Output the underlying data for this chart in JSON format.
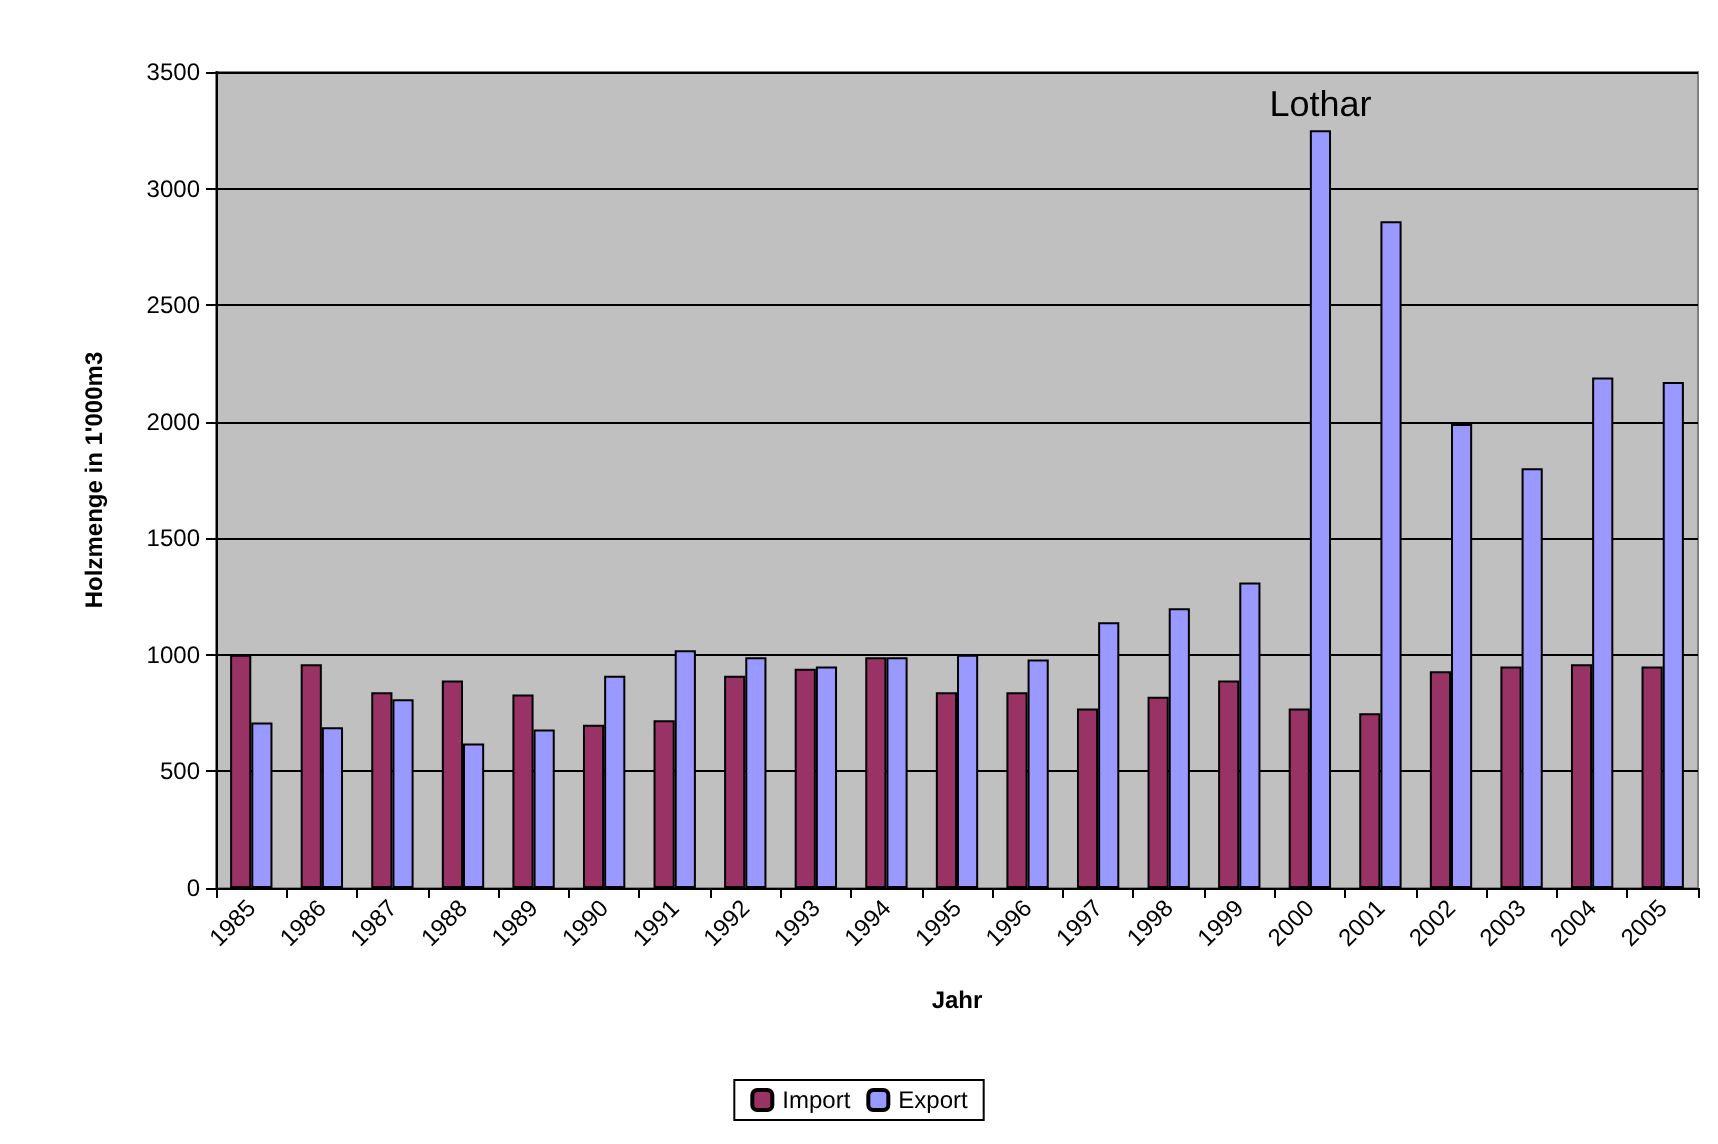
{
  "chart_data": {
    "type": "bar",
    "xlabel": "Jahr",
    "ylabel": "Holzmenge in 1'000m3",
    "categories": [
      "1985",
      "1986",
      "1987",
      "1988",
      "1989",
      "1990",
      "1991",
      "1992",
      "1993",
      "1994",
      "1995",
      "1996",
      "1997",
      "1998",
      "1999",
      "2000",
      "2001",
      "2002",
      "2003",
      "2004",
      "2005"
    ],
    "series": [
      {
        "name": "Import",
        "color": "#993366",
        "values": [
          1000,
          960,
          840,
          890,
          830,
          700,
          720,
          910,
          940,
          990,
          840,
          840,
          770,
          820,
          890,
          770,
          750,
          930,
          950,
          960,
          950
        ]
      },
      {
        "name": "Export",
        "color": "#9999ff",
        "values": [
          710,
          690,
          810,
          620,
          680,
          910,
          1020,
          990,
          950,
          990,
          1000,
          980,
          1140,
          1200,
          1310,
          3250,
          2860,
          1990,
          1800,
          2190,
          2170
        ]
      }
    ],
    "annotations": [
      {
        "text": "Lothar",
        "x": "2000",
        "y": 3250
      }
    ],
    "ylim": [
      0,
      3500
    ],
    "yticks": [
      0,
      500,
      1000,
      1500,
      2000,
      2500,
      3000,
      3500
    ],
    "grid": "y",
    "legend": "bottom"
  }
}
